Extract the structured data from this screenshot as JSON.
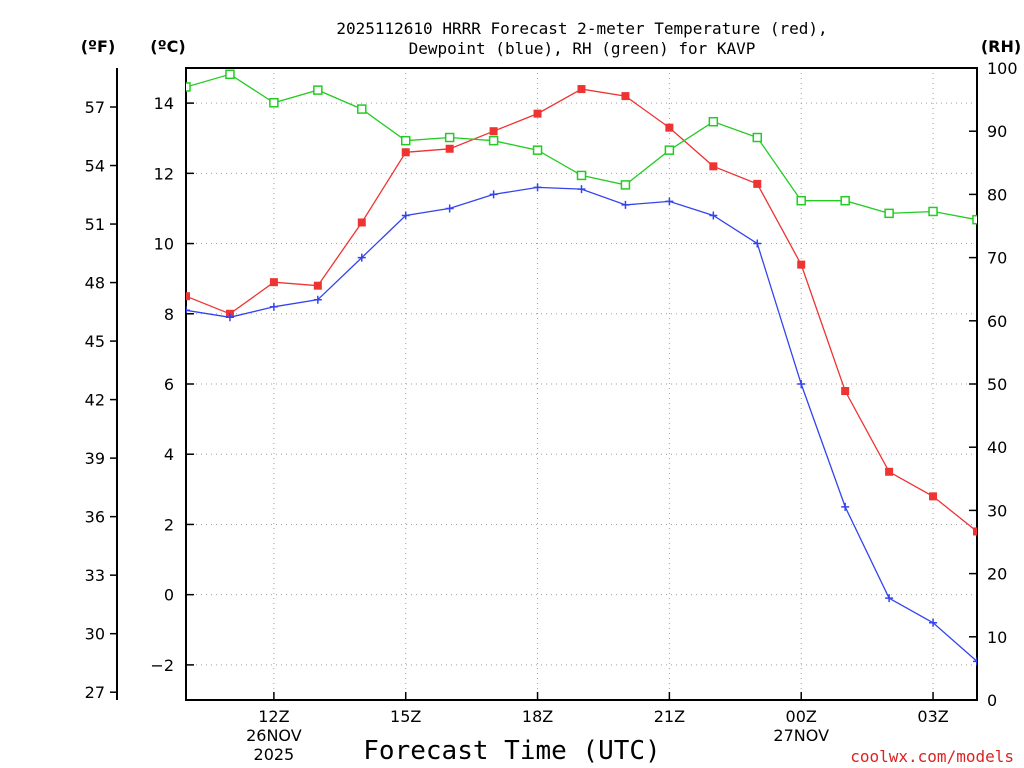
{
  "colors": {
    "temperature": "#ee3333",
    "dewpoint": "#3344ee",
    "rh": "#22cc22",
    "credit": "#dd2222"
  },
  "chart_data": {
    "type": "line",
    "title_line1": "2025112610 HRRR Forecast 2-meter Temperature (red),",
    "title_line2": "Dewpoint (blue), RH (green) for KAVP",
    "unit_f": "(ºF)",
    "unit_c": "(ºC)",
    "unit_rh": "(RH)",
    "xlabel": "Forecast Time (UTC)",
    "credit": "coolwx.com/models",
    "x_hours": [
      10,
      11,
      12,
      13,
      14,
      15,
      16,
      17,
      18,
      19,
      20,
      21,
      22,
      23,
      24,
      25,
      26,
      27,
      28
    ],
    "xlim": [
      10,
      28
    ],
    "x_ticks": [
      {
        "hour": 12,
        "label": "12Z",
        "sub1": "26NOV",
        "sub2": "2025"
      },
      {
        "hour": 15,
        "label": "15Z",
        "sub1": "",
        "sub2": ""
      },
      {
        "hour": 18,
        "label": "18Z",
        "sub1": "",
        "sub2": ""
      },
      {
        "hour": 21,
        "label": "21Z",
        "sub1": "",
        "sub2": ""
      },
      {
        "hour": 24,
        "label": "00Z",
        "sub1": "27NOV",
        "sub2": ""
      },
      {
        "hour": 27,
        "label": "03Z",
        "sub1": "",
        "sub2": ""
      }
    ],
    "celsius_axis": {
      "min": -3,
      "max": 15,
      "ticks": [
        "14",
        "12",
        "10",
        "8",
        "6",
        "4",
        "2",
        "0",
        "-2"
      ],
      "tick_values": [
        14,
        12,
        10,
        8,
        6,
        4,
        2,
        0,
        -2
      ]
    },
    "fahrenheit_axis": {
      "ticks": [
        "57",
        "54",
        "51",
        "48",
        "45",
        "42",
        "39",
        "36",
        "33",
        "30",
        "27"
      ],
      "tick_values": [
        57,
        54,
        51,
        48,
        45,
        42,
        39,
        36,
        33,
        30,
        27
      ]
    },
    "rh_axis": {
      "min": 0,
      "max": 100,
      "ticks": [
        "100",
        "90",
        "80",
        "70",
        "60",
        "50",
        "40",
        "30",
        "20",
        "10",
        "0"
      ],
      "tick_values": [
        100,
        90,
        80,
        70,
        60,
        50,
        40,
        30,
        20,
        10,
        0
      ]
    },
    "series": [
      {
        "name": "Temperature",
        "axis": "celsius",
        "marker": "filled-square",
        "values": [
          8.5,
          8.0,
          8.9,
          8.8,
          10.6,
          12.6,
          12.7,
          13.2,
          13.7,
          14.4,
          14.2,
          13.3,
          12.2,
          11.7,
          9.4,
          5.8,
          3.5,
          2.8,
          1.8
        ]
      },
      {
        "name": "Dewpoint",
        "axis": "celsius",
        "marker": "plus",
        "values": [
          8.1,
          7.9,
          8.2,
          8.4,
          9.6,
          10.8,
          11.0,
          11.4,
          11.6,
          11.55,
          11.1,
          11.2,
          10.8,
          10.0,
          6.0,
          2.5,
          -0.1,
          -0.8,
          -1.9
        ]
      },
      {
        "name": "RH",
        "axis": "rh",
        "marker": "open-square",
        "values": [
          97,
          99,
          94.5,
          96.5,
          93.5,
          88.5,
          89,
          88.5,
          87,
          83,
          81.5,
          87,
          91.5,
          89,
          79,
          79,
          77,
          77.3,
          76
        ]
      }
    ]
  }
}
